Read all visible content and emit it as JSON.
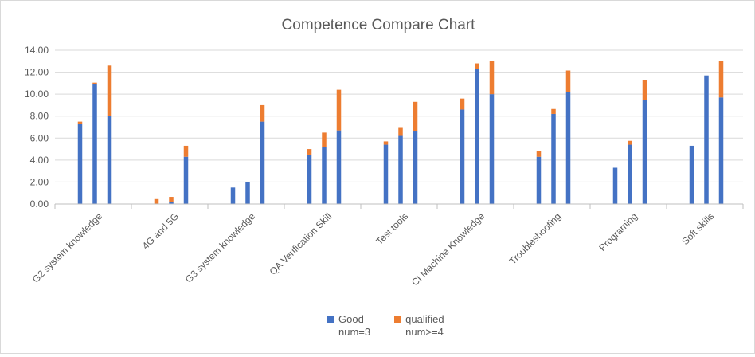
{
  "chart_data": {
    "type": "bar",
    "stacked": true,
    "title": "Competence Compare Chart",
    "categories": [
      "G2 system knowledge",
      "4G and 5G",
      "G3 system knowledge",
      "QA Verification Skill",
      "Test tools",
      "CI Machine Knowledge",
      "Troubleshooting",
      "Programing",
      "Soft skills"
    ],
    "bars_per_category": 3,
    "series": [
      {
        "name": "Good\nnum=3",
        "color": "#4472C4",
        "values": [
          [
            7.3,
            10.9,
            8.0
          ],
          [
            0.0,
            0.15,
            4.3
          ],
          [
            1.5,
            2.0,
            7.5
          ],
          [
            4.5,
            5.2,
            6.7
          ],
          [
            5.4,
            6.2,
            6.6
          ],
          [
            8.6,
            12.3,
            10.0
          ],
          [
            4.3,
            8.2,
            10.2
          ],
          [
            3.3,
            5.4,
            9.5
          ],
          [
            5.3,
            11.7,
            9.7
          ]
        ]
      },
      {
        "name": "qualified\nnum>=4",
        "color": "#ED7D31",
        "values": [
          [
            0.2,
            0.15,
            4.6
          ],
          [
            0.45,
            0.5,
            1.0
          ],
          [
            0.0,
            0.0,
            1.5
          ],
          [
            0.5,
            1.3,
            3.7
          ],
          [
            0.3,
            0.8,
            2.7
          ],
          [
            1.0,
            0.5,
            3.0
          ],
          [
            0.5,
            0.45,
            1.95
          ],
          [
            0.0,
            0.35,
            1.75
          ],
          [
            0.0,
            0.0,
            3.3
          ]
        ]
      }
    ],
    "ylim": [
      0,
      14
    ],
    "yticks": [
      "0.00",
      "2.00",
      "4.00",
      "6.00",
      "8.00",
      "10.00",
      "12.00",
      "14.00"
    ],
    "grid": true,
    "legend_position": "bottom"
  }
}
